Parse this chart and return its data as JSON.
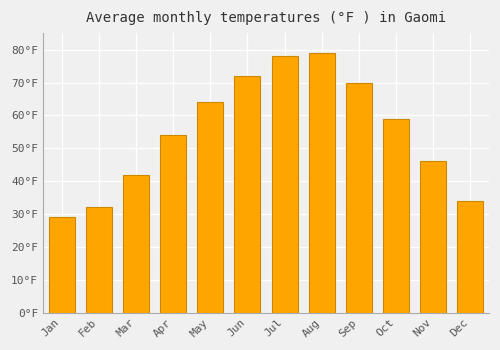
{
  "title": "Average monthly temperatures (°F ) in Gaomi",
  "months": [
    "Jan",
    "Feb",
    "Mar",
    "Apr",
    "May",
    "Jun",
    "Jul",
    "Aug",
    "Sep",
    "Oct",
    "Nov",
    "Dec"
  ],
  "values": [
    29,
    32,
    42,
    54,
    64,
    72,
    78,
    79,
    70,
    59,
    46,
    34
  ],
  "bar_color": "#FFA500",
  "bar_edge_color": "#CC8800",
  "ylim": [
    0,
    85
  ],
  "yticks": [
    0,
    10,
    20,
    30,
    40,
    50,
    60,
    70,
    80
  ],
  "ytick_labels": [
    "0°F",
    "10°F",
    "20°F",
    "30°F",
    "40°F",
    "50°F",
    "60°F",
    "70°F",
    "80°F"
  ],
  "background_color": "#F0F0F0",
  "grid_color": "#FFFFFF",
  "title_fontsize": 10,
  "tick_fontsize": 8,
  "bar_width": 0.7
}
